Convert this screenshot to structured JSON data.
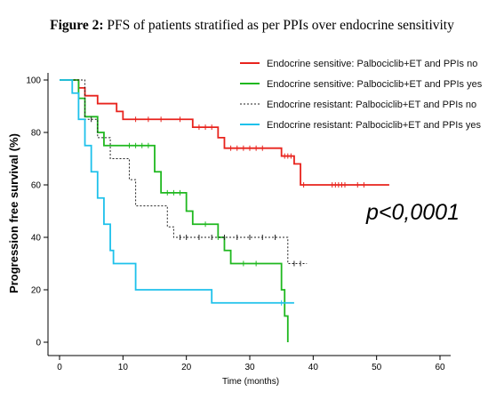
{
  "figure": {
    "label": "Figure 2:",
    "caption": "PFS of patients stratified as per PPIs over endocrine sensitivity"
  },
  "annotation": "p<0,0001",
  "chart_data": {
    "type": "line",
    "step": true,
    "xlabel": "Time (months)",
    "ylabel": "Progression free survival (%)",
    "xlim": [
      0,
      60
    ],
    "ylim": [
      0,
      100
    ],
    "xticks": [
      "0",
      "10",
      "20",
      "30",
      "40",
      "50",
      "60"
    ],
    "yticks": [
      "0",
      "20",
      "40",
      "60",
      "80",
      "100"
    ],
    "grid": false,
    "legend_position": "top-right",
    "series": [
      {
        "name": "Endocrine sensitive: Palbociclib+ET and PPIs no",
        "color": "#e8231d",
        "dash": "solid",
        "steps": [
          [
            0,
            100
          ],
          [
            3,
            97
          ],
          [
            4,
            94
          ],
          [
            6,
            91
          ],
          [
            9,
            88
          ],
          [
            10,
            85
          ],
          [
            21,
            82
          ],
          [
            25,
            78
          ],
          [
            26,
            74
          ],
          [
            33,
            74
          ],
          [
            35,
            71
          ],
          [
            37,
            68
          ],
          [
            38,
            60
          ],
          [
            52,
            60
          ]
        ],
        "censored": [
          12,
          14,
          16,
          19,
          22,
          23,
          24,
          27,
          28,
          29,
          30,
          31,
          32,
          35.5,
          36,
          36.5,
          38.5,
          43,
          43.5,
          44,
          44.5,
          45,
          47,
          48
        ]
      },
      {
        "name": "Endocrine sensitive: Palbociclib+ET and PPIs yes",
        "color": "#1fb81f",
        "dash": "solid",
        "steps": [
          [
            0,
            100
          ],
          [
            3,
            93
          ],
          [
            4,
            86
          ],
          [
            6,
            80
          ],
          [
            7,
            75
          ],
          [
            15,
            65
          ],
          [
            16,
            57
          ],
          [
            20,
            50
          ],
          [
            21,
            45
          ],
          [
            25,
            40
          ],
          [
            26,
            35
          ],
          [
            27,
            30
          ],
          [
            35,
            20
          ],
          [
            35.5,
            10
          ],
          [
            36,
            0
          ]
        ],
        "censored": [
          11,
          12,
          13,
          14,
          17,
          18,
          19,
          23,
          25,
          29,
          31
        ]
      },
      {
        "name": "Endocrine resistant: Palbociclib+ET and PPIs no",
        "color": "#222222",
        "dash": "dashed",
        "steps": [
          [
            0,
            100
          ],
          [
            4,
            85
          ],
          [
            6,
            78
          ],
          [
            8,
            70
          ],
          [
            11,
            62
          ],
          [
            12,
            52
          ],
          [
            17,
            44
          ],
          [
            18,
            40
          ],
          [
            36,
            30
          ],
          [
            39,
            30
          ]
        ],
        "censored": [
          5,
          19,
          20,
          22,
          24,
          26,
          28,
          30,
          32,
          34,
          37,
          38
        ]
      },
      {
        "name": "Endocrine resistant: Palbociclib+ET and PPIs yes",
        "color": "#1ec1eb",
        "dash": "solid",
        "steps": [
          [
            0,
            100
          ],
          [
            2,
            95
          ],
          [
            3,
            85
          ],
          [
            4,
            75
          ],
          [
            5,
            65
          ],
          [
            6,
            55
          ],
          [
            7,
            45
          ],
          [
            8,
            35
          ],
          [
            8.5,
            30
          ],
          [
            12,
            20
          ],
          [
            24,
            15
          ],
          [
            37,
            15
          ]
        ],
        "censored": [
          35
        ]
      }
    ]
  }
}
